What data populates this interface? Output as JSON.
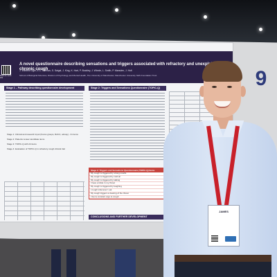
{
  "poster": {
    "title": "A novel questionnaire describing sensations and triggers associated with refractory and unexplained chronic cough",
    "authors": "J. Winfield Ogle, E.C. Keenan, S. Saigal, J. King, K. Hart, P. Buckley, J. Winnie, L. Smith, P. Marsden, J. Holt",
    "affiliation": "School of Biological Sciences, Division of Psychology and Mental Health, The University of Manchester, Manchester University NHS Foundation Trust",
    "number": "9",
    "qr_label": "Scan for more info",
    "section_method": "Stage 1 – Pathway describing questionnaire development",
    "section_results": "Stage 2: Triggers and Sensations Questionnaire (TOPIC-Q) Items",
    "section_conclusions": "CONCLUSIONS AND FURTHER DEVELOPMENT",
    "stages": [
      "Stage 1: Clinical and research input (Focus groups, RACC, airway) - 31 items",
      "Stage 2: Patients review candidate items",
      "Stage 3: TOPIC-Q with 24 items",
      "Stage 4: Evaluation of TOPIC-Q in refractory cough clinical trial"
    ],
    "questionnaire_items": [
      "My cough is triggered by strong smells",
      "My cough is triggered by cold air",
      "My cough is triggered by talking",
      "I have a tickle in my throat",
      "My cough is triggered by laughing",
      "I cough whenever I eat",
      "My cough triggers a clearing of the throat",
      "I feel a constant urge to cough"
    ]
  },
  "badge": {
    "name": "JAMES"
  }
}
